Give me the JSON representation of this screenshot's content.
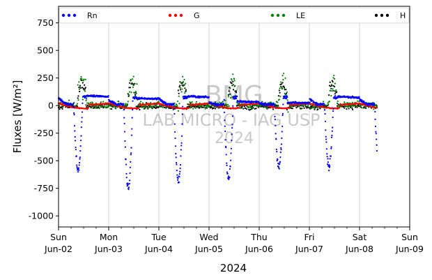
{
  "chart_data": {
    "type": "scatter",
    "ylabel": "Fluxes [W/m²]",
    "xlabel": "2024",
    "ylim": [
      -1100,
      900
    ],
    "yticks": [
      750,
      500,
      250,
      0,
      -250,
      -500,
      -750,
      -1000
    ],
    "xlim": [
      "2024-06-02",
      "2024-06-09"
    ],
    "x_ticks": [
      {
        "day": "Sun",
        "date": "Jun-02",
        "pos": 0
      },
      {
        "day": "Mon",
        "date": "Jun-03",
        "pos": 1
      },
      {
        "day": "Tue",
        "date": "Jun-04",
        "pos": 2
      },
      {
        "day": "Wed",
        "date": "Jun-05",
        "pos": 3
      },
      {
        "day": "Thu",
        "date": "Jun-06",
        "pos": 4
      },
      {
        "day": "Fri",
        "date": "Jun-07",
        "pos": 5
      },
      {
        "day": "Sat",
        "date": "Jun-08",
        "pos": 6
      },
      {
        "day": "Sun",
        "date": "Jun-09",
        "pos": 7
      }
    ],
    "grid": "x-major",
    "legend_position": "top",
    "series": [
      {
        "name": "Rn",
        "color": "#0000ff"
      },
      {
        "name": "G",
        "color": "#ff0000"
      },
      {
        "name": "LE",
        "color": "#008000"
      },
      {
        "name": "H",
        "color": "#000000"
      }
    ],
    "watermark": [
      "BMG",
      "LAB MICRO - IAG USP",
      "2024"
    ]
  }
}
